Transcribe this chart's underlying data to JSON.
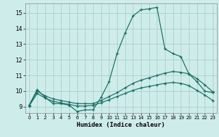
{
  "xlabel": "Humidex (Indice chaleur)",
  "bg_color": "#ceecea",
  "grid_color": "#aacfcc",
  "line_color": "#1a6e65",
  "xlim": [
    -0.5,
    23.5
  ],
  "ylim": [
    8.6,
    15.6
  ],
  "yticks": [
    9,
    10,
    11,
    12,
    13,
    14,
    15
  ],
  "xticks": [
    0,
    1,
    2,
    3,
    4,
    5,
    6,
    7,
    8,
    9,
    10,
    11,
    12,
    13,
    14,
    15,
    16,
    17,
    18,
    19,
    20,
    21,
    22,
    23
  ],
  "line1_x": [
    0,
    1,
    2,
    3,
    4,
    5,
    6,
    7,
    8,
    9,
    10,
    11,
    12,
    13,
    14,
    15,
    16,
    17,
    18,
    19,
    20,
    21,
    22,
    23
  ],
  "line1_y": [
    9.1,
    10.1,
    9.6,
    9.2,
    9.2,
    9.1,
    8.7,
    8.8,
    8.8,
    9.6,
    10.6,
    12.4,
    13.7,
    14.8,
    15.2,
    15.25,
    15.35,
    12.7,
    12.4,
    12.2,
    11.1,
    10.6,
    10.0,
    9.9
  ],
  "line2_x": [
    0,
    1,
    2,
    3,
    4,
    5,
    6,
    7,
    8,
    9,
    10,
    11,
    12,
    13,
    14,
    15,
    16,
    17,
    18,
    19,
    20,
    21,
    22,
    23
  ],
  "line2_y": [
    9.1,
    10.0,
    9.7,
    9.5,
    9.4,
    9.3,
    9.2,
    9.2,
    9.2,
    9.4,
    9.65,
    9.9,
    10.2,
    10.5,
    10.7,
    10.85,
    11.0,
    11.15,
    11.25,
    11.2,
    11.1,
    10.8,
    10.4,
    9.95
  ],
  "line3_x": [
    0,
    1,
    2,
    3,
    4,
    5,
    6,
    7,
    8,
    9,
    10,
    11,
    12,
    13,
    14,
    15,
    16,
    17,
    18,
    19,
    20,
    21,
    22,
    23
  ],
  "line3_y": [
    9.05,
    9.85,
    9.55,
    9.35,
    9.25,
    9.15,
    9.05,
    9.05,
    9.1,
    9.25,
    9.45,
    9.65,
    9.85,
    10.05,
    10.2,
    10.3,
    10.4,
    10.5,
    10.55,
    10.5,
    10.35,
    10.05,
    9.75,
    9.4
  ]
}
